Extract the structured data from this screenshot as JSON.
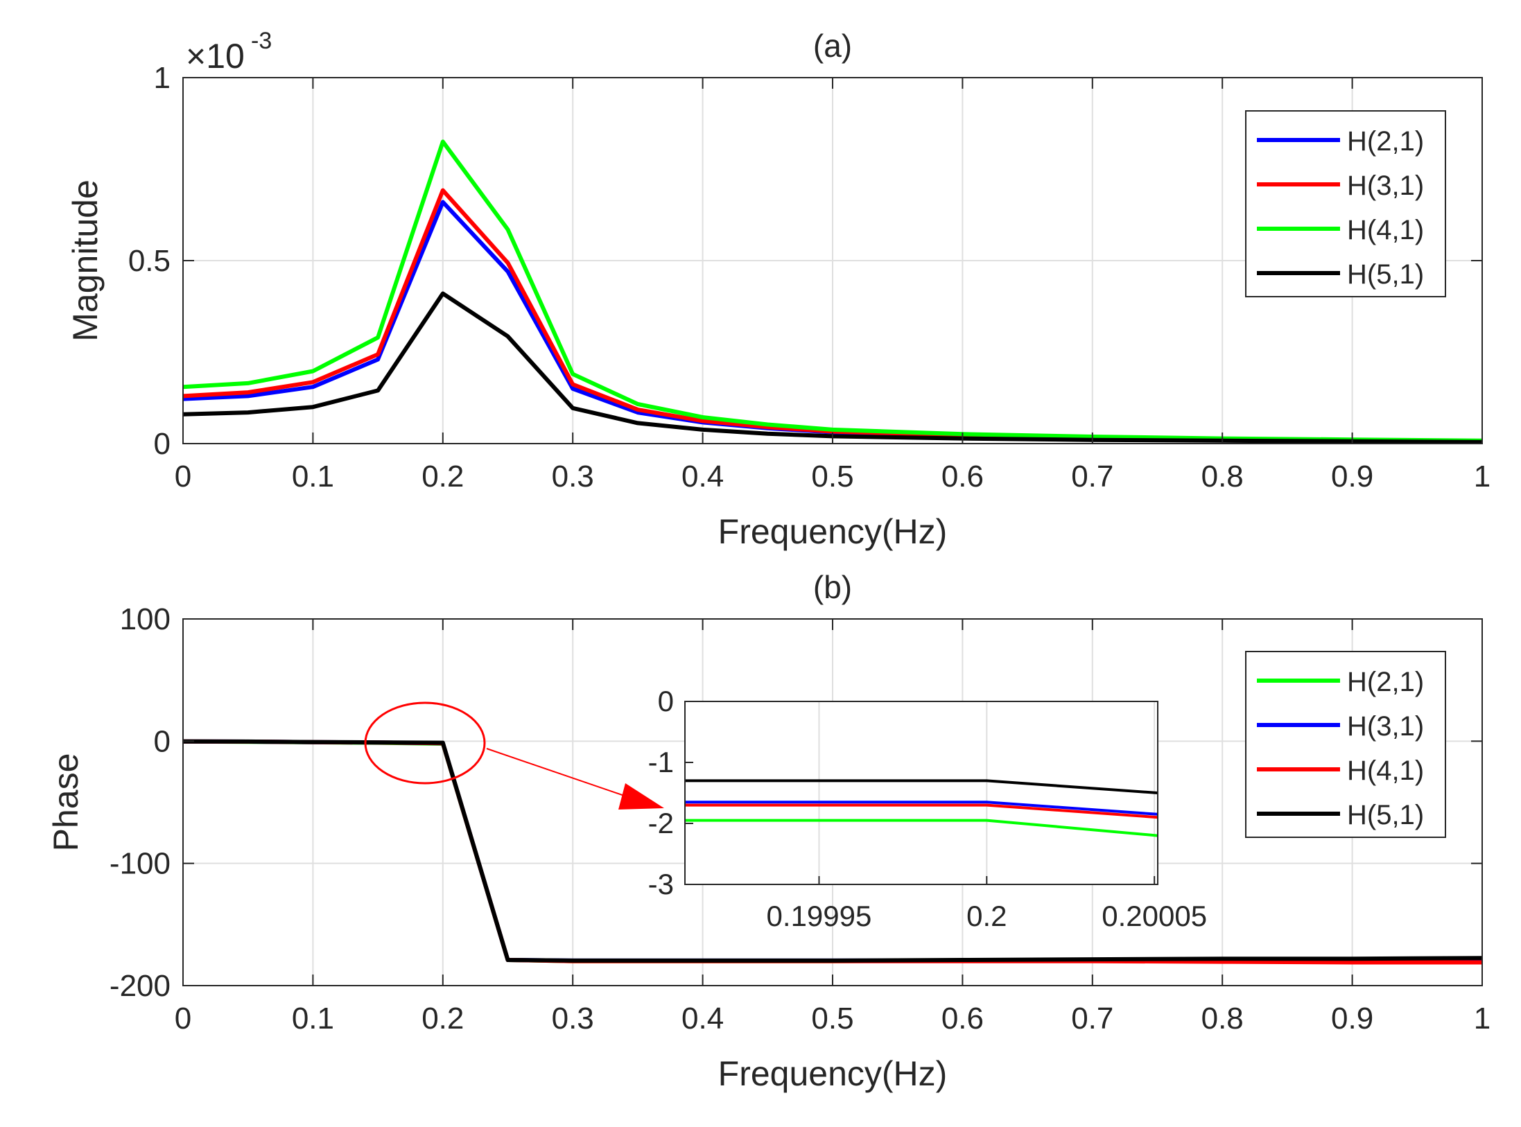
{
  "chart_data": [
    {
      "id": "a",
      "type": "line",
      "title": "(a)",
      "xlabel": "Frequency(Hz)",
      "ylabel": "Magnitude",
      "xlim": [
        0,
        1
      ],
      "ylim": [
        0,
        1
      ],
      "y_scale_label": "×10",
      "y_scale_exponent": "-3",
      "grid": true,
      "legend_position": "top-right",
      "x_ticks": [
        0,
        0.1,
        0.2,
        0.3,
        0.4,
        0.5,
        0.6,
        0.7,
        0.8,
        0.9,
        1
      ],
      "x_tick_labels": [
        "0",
        "0.1",
        "0.2",
        "0.3",
        "0.4",
        "0.5",
        "0.6",
        "0.7",
        "0.8",
        "0.9",
        "1"
      ],
      "y_ticks": [
        0,
        0.5,
        1
      ],
      "y_tick_labels": [
        "0",
        "0.5",
        "1"
      ],
      "x": [
        0,
        0.05,
        0.1,
        0.15,
        0.2,
        0.25,
        0.3,
        0.35,
        0.4,
        0.45,
        0.5,
        0.6,
        0.7,
        0.8,
        0.9,
        1
      ],
      "series": [
        {
          "name": "H(2,1)",
          "color": "#0000ff",
          "values": [
            0.122,
            0.13,
            0.155,
            0.23,
            0.66,
            0.47,
            0.15,
            0.085,
            0.058,
            0.042,
            0.031,
            0.022,
            0.016,
            0.012,
            0.009,
            0.006
          ]
        },
        {
          "name": "H(3,1)",
          "color": "#ff0000",
          "values": [
            0.13,
            0.14,
            0.168,
            0.244,
            0.692,
            0.494,
            0.162,
            0.093,
            0.062,
            0.045,
            0.033,
            0.023,
            0.017,
            0.013,
            0.01,
            0.007
          ]
        },
        {
          "name": "H(4,1)",
          "color": "#00ff00",
          "values": [
            0.155,
            0.165,
            0.198,
            0.29,
            0.825,
            0.585,
            0.19,
            0.108,
            0.072,
            0.052,
            0.038,
            0.026,
            0.019,
            0.014,
            0.011,
            0.008
          ]
        },
        {
          "name": "H(5,1)",
          "color": "#000000",
          "values": [
            0.08,
            0.085,
            0.1,
            0.145,
            0.41,
            0.293,
            0.097,
            0.056,
            0.038,
            0.027,
            0.02,
            0.014,
            0.01,
            0.008,
            0.006,
            0.004
          ]
        }
      ]
    },
    {
      "id": "b",
      "type": "line",
      "title": "(b)",
      "xlabel": "Frequency(Hz)",
      "ylabel": "Phase",
      "xlim": [
        0,
        1
      ],
      "ylim": [
        -200,
        100
      ],
      "grid": true,
      "legend_position": "right",
      "x_ticks": [
        0,
        0.1,
        0.2,
        0.3,
        0.4,
        0.5,
        0.6,
        0.7,
        0.8,
        0.9,
        1
      ],
      "x_tick_labels": [
        "0",
        "0.1",
        "0.2",
        "0.3",
        "0.4",
        "0.5",
        "0.6",
        "0.7",
        "0.8",
        "0.9",
        "1"
      ],
      "y_ticks": [
        -200,
        -100,
        0,
        100
      ],
      "y_tick_labels": [
        "-200",
        "-100",
        "0",
        "100"
      ],
      "x": [
        0,
        0.05,
        0.1,
        0.15,
        0.2,
        0.25,
        0.3,
        0.35,
        0.4,
        0.5,
        0.6,
        0.7,
        0.8,
        0.9,
        1
      ],
      "series": [
        {
          "name": "H(2,1)",
          "color": "#00ff00",
          "values": [
            -0.2,
            -0.5,
            -0.9,
            -1.3,
            -2.0,
            -179,
            -180,
            -180,
            -180,
            -180,
            -179.5,
            -179,
            -179,
            -179,
            -178
          ]
        },
        {
          "name": "H(3,1)",
          "color": "#0000ff",
          "values": [
            -0.2,
            -0.4,
            -0.8,
            -1.1,
            -1.7,
            -179,
            -179.5,
            -179.5,
            -179.5,
            -179.5,
            -179.5,
            -179,
            -179,
            -179,
            -179
          ]
        },
        {
          "name": "H(4,1)",
          "color": "#ff0000",
          "values": [
            -0.2,
            -0.4,
            -0.8,
            -1.1,
            -1.7,
            -179,
            -180,
            -180,
            -180,
            -180,
            -180,
            -180,
            -180.5,
            -181,
            -181
          ]
        },
        {
          "name": "H(5,1)",
          "color": "#000000",
          "values": [
            -0.2,
            -0.3,
            -0.7,
            -1.0,
            -1.3,
            -179,
            -179.5,
            -179.5,
            -179.5,
            -179.5,
            -179,
            -178.5,
            -178,
            -178,
            -177.5
          ]
        }
      ],
      "inset": {
        "xlim": [
          0.19991,
          0.200051
        ],
        "ylim": [
          -3,
          0
        ],
        "x_ticks": [
          0.19995,
          0.2,
          0.20005
        ],
        "x_tick_labels": [
          "0.19995",
          "0.2",
          "0.20005"
        ],
        "y_ticks": [
          -3,
          -2,
          -1,
          0
        ],
        "y_tick_labels": [
          "-3",
          "-2",
          "-1",
          "0"
        ],
        "x": [
          0.19991,
          0.2,
          0.200051
        ],
        "series": [
          {
            "name": "H(2,1)",
            "color": "#00ff00",
            "values": [
              -1.95,
              -1.95,
              -2.2
            ]
          },
          {
            "name": "H(3,1)",
            "color": "#0000ff",
            "values": [
              -1.65,
              -1.65,
              -1.85
            ]
          },
          {
            "name": "H(4,1)",
            "color": "#ff0000",
            "values": [
              -1.7,
              -1.7,
              -1.9
            ]
          },
          {
            "name": "H(5,1)",
            "color": "#000000",
            "values": [
              -1.3,
              -1.3,
              -1.5
            ]
          }
        ]
      }
    }
  ]
}
